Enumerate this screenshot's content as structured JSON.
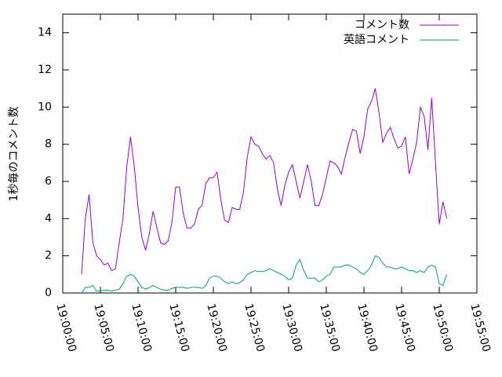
{
  "chart_data": {
    "type": "line",
    "ylabel": "1秒毎のコメント数",
    "x": [
      "19:02:30",
      "19:03:00",
      "19:03:30",
      "19:04:00",
      "19:04:30",
      "19:05:00",
      "19:05:30",
      "19:06:00",
      "19:06:30",
      "19:07:00",
      "19:07:30",
      "19:08:00",
      "19:08:30",
      "19:09:00",
      "19:09:30",
      "19:10:00",
      "19:10:30",
      "19:11:00",
      "19:11:30",
      "19:12:00",
      "19:12:30",
      "19:13:00",
      "19:13:30",
      "19:14:00",
      "19:14:30",
      "19:15:00",
      "19:15:30",
      "19:16:00",
      "19:16:30",
      "19:17:00",
      "19:17:30",
      "19:18:00",
      "19:18:30",
      "19:19:00",
      "19:19:30",
      "19:20:00",
      "19:20:30",
      "19:21:00",
      "19:21:30",
      "19:22:00",
      "19:22:30",
      "19:23:00",
      "19:23:30",
      "19:24:00",
      "19:24:30",
      "19:25:00",
      "19:25:30",
      "19:26:00",
      "19:26:30",
      "19:27:00",
      "19:27:30",
      "19:28:00",
      "19:28:30",
      "19:29:00",
      "19:29:30",
      "19:30:00",
      "19:30:30",
      "19:31:00",
      "19:31:30",
      "19:32:00",
      "19:32:30",
      "19:33:00",
      "19:33:30",
      "19:34:00",
      "19:34:30",
      "19:35:00",
      "19:35:30",
      "19:36:00",
      "19:36:30",
      "19:37:00",
      "19:37:30",
      "19:38:00",
      "19:38:30",
      "19:39:00",
      "19:39:30",
      "19:40:00",
      "19:40:30",
      "19:41:00",
      "19:41:30",
      "19:42:00",
      "19:42:30",
      "19:43:00",
      "19:43:30",
      "19:44:00",
      "19:44:30",
      "19:45:00",
      "19:45:30",
      "19:46:00",
      "19:46:30",
      "19:47:00",
      "19:47:30",
      "19:48:00",
      "19:48:30",
      "19:49:00",
      "19:49:30",
      "19:50:00",
      "19:50:30",
      "19:51:00"
    ],
    "series": [
      {
        "name": "コメント数",
        "color": "#9400d3",
        "values": [
          1.0,
          4.0,
          5.3,
          2.7,
          2.0,
          1.8,
          1.5,
          1.6,
          1.2,
          1.3,
          2.7,
          4.0,
          6.8,
          8.4,
          6.8,
          4.6,
          3.0,
          2.3,
          3.2,
          4.4,
          3.5,
          2.7,
          2.6,
          2.8,
          3.8,
          5.7,
          5.7,
          4.3,
          3.5,
          3.5,
          3.7,
          4.5,
          4.7,
          5.9,
          6.2,
          6.2,
          6.5,
          5.0,
          3.9,
          3.8,
          4.6,
          4.5,
          4.5,
          5.4,
          7.3,
          8.4,
          8.0,
          7.9,
          7.5,
          7.2,
          7.4,
          7.0,
          5.6,
          4.7,
          5.8,
          6.5,
          6.9,
          6.0,
          5.1,
          6.0,
          6.9,
          6.0,
          4.7,
          4.7,
          5.3,
          6.2,
          7.1,
          7.0,
          6.8,
          6.4,
          7.3,
          8.1,
          8.8,
          8.7,
          7.5,
          8.4,
          9.9,
          10.3,
          11.0,
          9.7,
          8.1,
          8.6,
          8.9,
          8.3,
          7.8,
          7.9,
          8.4,
          6.4,
          7.2,
          8.1,
          10.0,
          9.5,
          7.7,
          10.5,
          7.0,
          3.7,
          4.9,
          4.0
        ]
      },
      {
        "name": "英語コメント",
        "color": "#009e73",
        "values": [
          0.0,
          0.3,
          0.3,
          0.4,
          0.1,
          0.1,
          0.15,
          0.15,
          0.1,
          0.15,
          0.2,
          0.5,
          0.9,
          1.0,
          0.9,
          0.6,
          0.3,
          0.2,
          0.3,
          0.4,
          0.3,
          0.2,
          0.15,
          0.15,
          0.25,
          0.3,
          0.3,
          0.3,
          0.25,
          0.3,
          0.3,
          0.3,
          0.25,
          0.4,
          0.8,
          0.9,
          0.9,
          0.8,
          0.6,
          0.5,
          0.6,
          0.5,
          0.55,
          0.7,
          1.0,
          1.1,
          1.2,
          1.15,
          1.15,
          1.2,
          1.3,
          1.2,
          1.1,
          1.0,
          0.9,
          0.7,
          0.8,
          1.5,
          1.8,
          1.2,
          0.8,
          0.8,
          0.8,
          0.6,
          0.7,
          0.9,
          1.0,
          1.4,
          1.4,
          1.4,
          1.5,
          1.5,
          1.4,
          1.3,
          1.1,
          1.0,
          1.2,
          1.5,
          2.0,
          1.9,
          1.6,
          1.4,
          1.4,
          1.3,
          1.3,
          1.4,
          1.3,
          1.2,
          1.2,
          1.1,
          1.2,
          1.1,
          1.4,
          1.5,
          1.4,
          0.5,
          0.4,
          1.0
        ]
      }
    ],
    "xlim": [
      "19:00:00",
      "19:55:00"
    ],
    "xticks": [
      "19:00:00",
      "19:05:00",
      "19:10:00",
      "19:15:00",
      "19:20:00",
      "19:25:00",
      "19:30:00",
      "19:35:00",
      "19:40:00",
      "19:45:00",
      "19:50:00",
      "19:55:00"
    ],
    "ylim": [
      0,
      15
    ],
    "yticks": [
      0,
      2,
      4,
      6,
      8,
      10,
      12,
      14
    ],
    "legend": "upper right"
  }
}
